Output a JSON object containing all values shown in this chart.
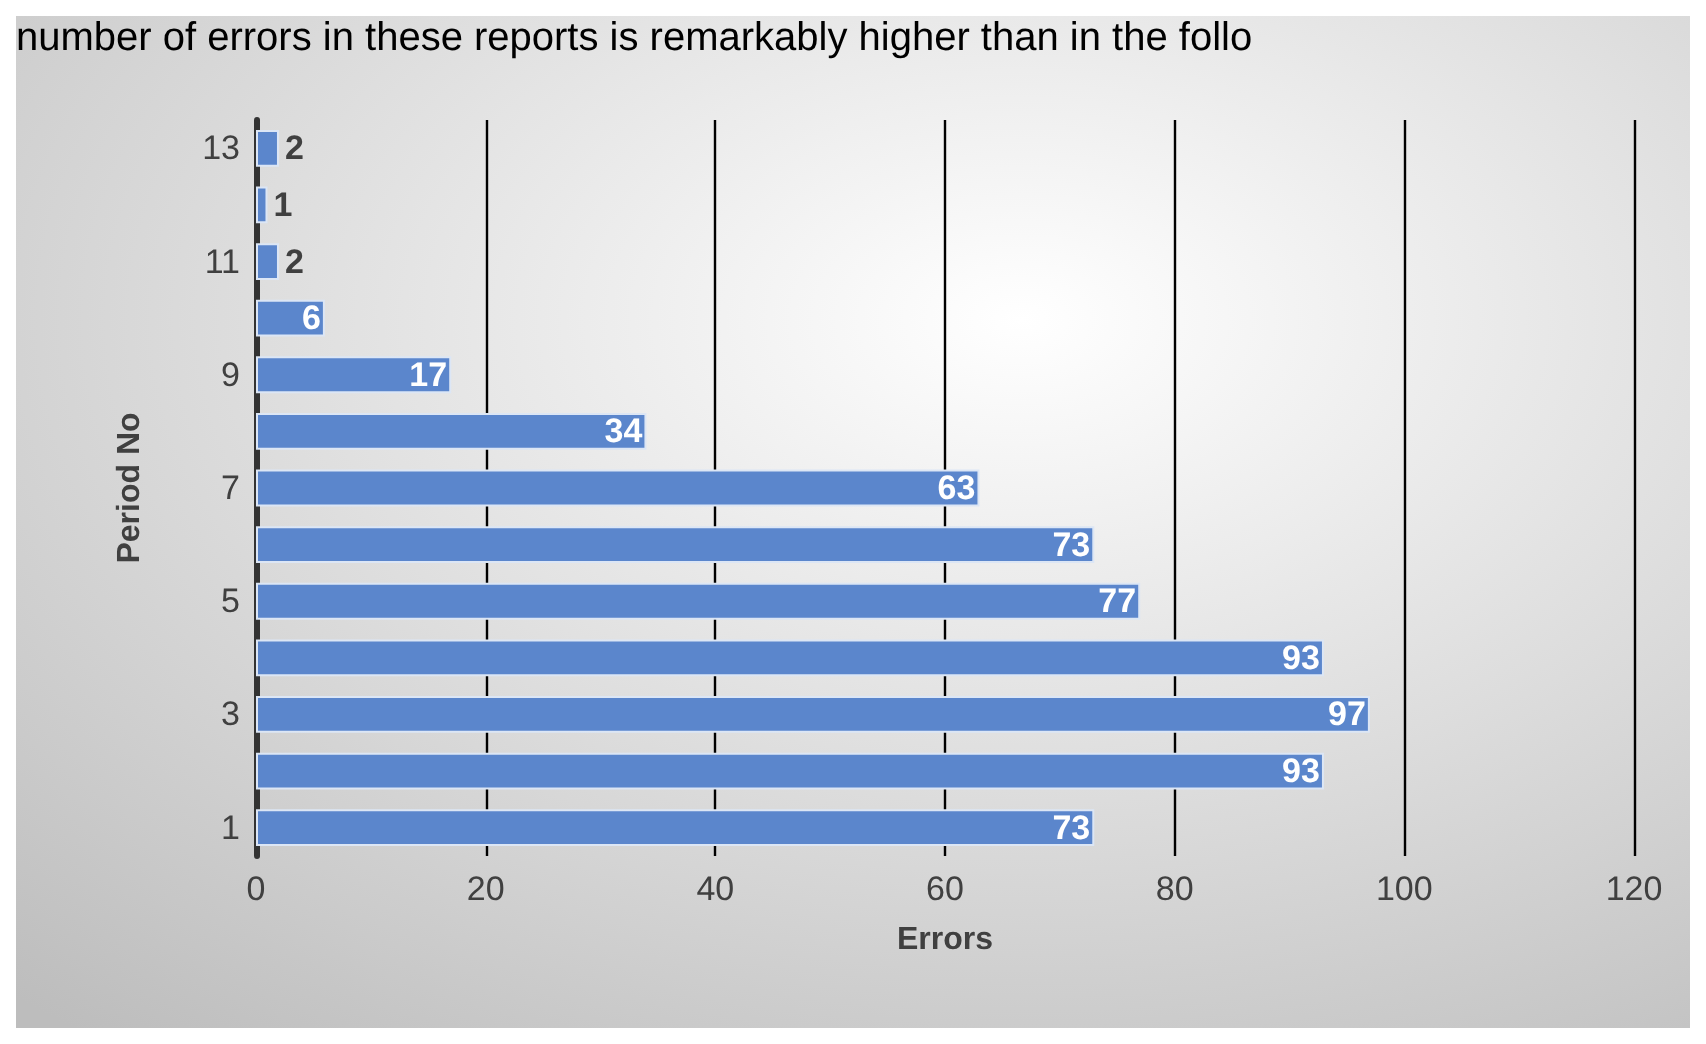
{
  "chart_data": {
    "type": "bar",
    "orientation": "horizontal",
    "xlabel": "Errors",
    "ylabel": "Period No",
    "annotations": [
      "number of errors in these reports is remarkably higher than in the follo"
    ],
    "categories": [
      "13",
      null,
      "11",
      null,
      "9",
      null,
      "7",
      null,
      "5",
      null,
      "3",
      null,
      "1"
    ],
    "values": [
      2,
      1,
      2,
      6,
      17,
      34,
      63,
      73,
      77,
      93,
      97,
      93,
      73
    ],
    "color": "#5b86cc",
    "xlim": [
      0,
      120
    ],
    "xticks": [
      0,
      20,
      40,
      60,
      80,
      100,
      120
    ],
    "grid": "x",
    "data_labels": true
  }
}
